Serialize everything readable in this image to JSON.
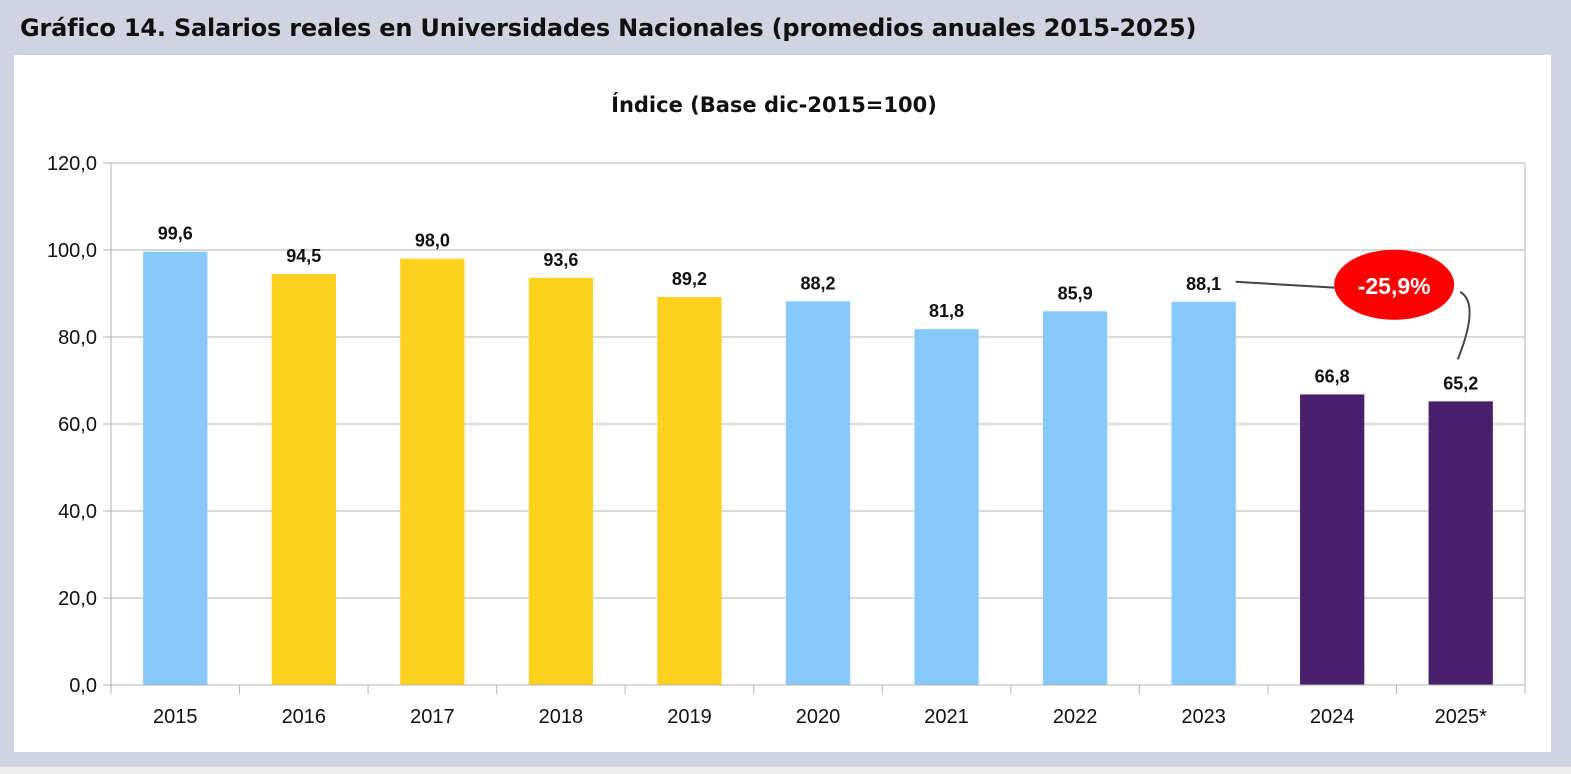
{
  "figure_title": "Gráfico 14.  Salarios reales en Universidades Nacionales (promedios anuales 2015-2025)",
  "chart_data": {
    "type": "bar",
    "title": "Índice (Base dic-2015=100)",
    "xlabel": "",
    "ylabel": "",
    "ylim": [
      0,
      120
    ],
    "yticks": [
      0,
      20,
      40,
      60,
      80,
      100,
      120
    ],
    "ytick_labels": [
      "0,0",
      "20,0",
      "40,0",
      "60,0",
      "80,0",
      "100,0",
      "120,0"
    ],
    "grid": true,
    "legend": "none",
    "categories": [
      "2015",
      "2016",
      "2017",
      "2018",
      "2019",
      "2020",
      "2021",
      "2022",
      "2023",
      "2024",
      "2025*"
    ],
    "values": [
      99.6,
      94.5,
      98.0,
      93.6,
      89.2,
      88.2,
      81.8,
      85.9,
      88.1,
      66.8,
      65.2
    ],
    "value_labels": [
      "99,6",
      "94,5",
      "98,0",
      "93,6",
      "89,2",
      "88,2",
      "81,8",
      "85,9",
      "88,1",
      "66,8",
      "65,2"
    ],
    "bar_colors": [
      "#87c9fa",
      "#fcd21e",
      "#fcd21e",
      "#fcd21e",
      "#fcd21e",
      "#87c9fa",
      "#87c9fa",
      "#87c9fa",
      "#87c9fa",
      "#4a1f6b",
      "#4a1f6b"
    ],
    "annotation": {
      "text": "-25,9%",
      "from_category": "2023",
      "to_category": "2025*",
      "color": "#ff0000"
    }
  }
}
